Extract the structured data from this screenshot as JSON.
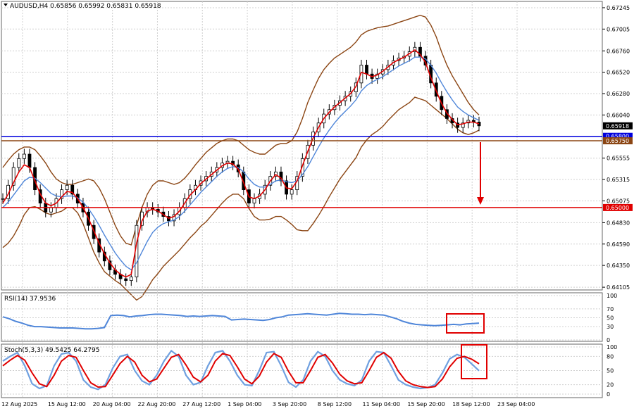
{
  "chart_data": {
    "type": "candlestick",
    "symbol_line": "AUDUSD,H4  0.65856 0.65992 0.65831 0.65918",
    "x_labels": [
      "12 Aug 2025",
      "15 Aug 12:00",
      "20 Aug 04:00",
      "22 Aug 20:00",
      "27 Aug 12:00",
      "1 Sep 04:00",
      "3 Sep 20:00",
      "8 Sep 12:00",
      "11 Sep 04:00",
      "15 Sep 20:00",
      "18 Sep 12:00",
      "23 Sep 04:00"
    ],
    "price_axis": {
      "ticks": [
        "0.67245",
        "0.67005",
        "0.66760",
        "0.66520",
        "0.66280",
        "0.66040",
        "0.65555",
        "0.65315",
        "0.65075",
        "0.64830",
        "0.64590",
        "0.64350",
        "0.64105"
      ],
      "ylim": [
        0.6409,
        0.673
      ]
    },
    "price_series": {
      "close": [
        0.651,
        0.6525,
        0.6545,
        0.6555,
        0.656,
        0.6545,
        0.652,
        0.6505,
        0.6495,
        0.65,
        0.651,
        0.652,
        0.6525,
        0.6515,
        0.6505,
        0.6495,
        0.648,
        0.6465,
        0.645,
        0.644,
        0.643,
        0.6425,
        0.642,
        0.6418,
        0.6422,
        0.648,
        0.6495,
        0.65,
        0.6498,
        0.6495,
        0.649,
        0.6485,
        0.6492,
        0.65,
        0.651,
        0.652,
        0.6525,
        0.653,
        0.6535,
        0.654,
        0.6545,
        0.655,
        0.6552,
        0.6548,
        0.654,
        0.652,
        0.6505,
        0.651,
        0.6515,
        0.6525,
        0.6535,
        0.654,
        0.653,
        0.6515,
        0.652,
        0.6535,
        0.6555,
        0.657,
        0.6585,
        0.6595,
        0.6605,
        0.661,
        0.6615,
        0.662,
        0.6625,
        0.663,
        0.664,
        0.666,
        0.665,
        0.6645,
        0.665,
        0.6655,
        0.666,
        0.6665,
        0.6668,
        0.667,
        0.6675,
        0.668,
        0.667,
        0.666,
        0.664,
        0.6625,
        0.661,
        0.66,
        0.6595,
        0.659,
        0.6595,
        0.6598,
        0.6596,
        0.65918
      ],
      "ma_fast": [
        0.6505,
        0.6515,
        0.6528,
        0.654,
        0.6548,
        0.6545,
        0.653,
        0.6515,
        0.6505,
        0.6502,
        0.6505,
        0.6512,
        0.6518,
        0.6517,
        0.651,
        0.65,
        0.6488,
        0.6474,
        0.646,
        0.6448,
        0.6438,
        0.643,
        0.6425,
        0.6422,
        0.6425,
        0.646,
        0.6485,
        0.6496,
        0.6498,
        0.6496,
        0.6492,
        0.6488,
        0.649,
        0.6496,
        0.6505,
        0.6514,
        0.652,
        0.6527,
        0.6532,
        0.6537,
        0.6542,
        0.6547,
        0.655,
        0.6549,
        0.6543,
        0.6528,
        0.6512,
        0.651,
        0.6513,
        0.652,
        0.653,
        0.6537,
        0.6533,
        0.6522,
        0.6521,
        0.653,
        0.6547,
        0.6563,
        0.6578,
        0.659,
        0.66,
        0.6607,
        0.6613,
        0.6618,
        0.6623,
        0.6628,
        0.6636,
        0.6652,
        0.665,
        0.6647,
        0.6649,
        0.6653,
        0.6658,
        0.6663,
        0.6666,
        0.6669,
        0.6673,
        0.6677,
        0.6672,
        0.6663,
        0.6646,
        0.6631,
        0.6617,
        0.6606,
        0.6599,
        0.6593,
        0.6594,
        0.6596,
        0.6596,
        0.6594
      ],
      "ma_slow": [
        0.65,
        0.6506,
        0.6514,
        0.6522,
        0.653,
        0.6534,
        0.6533,
        0.6528,
        0.6522,
        0.6516,
        0.6513,
        0.6512,
        0.6513,
        0.6513,
        0.6511,
        0.6506,
        0.6499,
        0.649,
        0.648,
        0.6469,
        0.6459,
        0.6449,
        0.6441,
        0.6434,
        0.643,
        0.6438,
        0.645,
        0.6462,
        0.6472,
        0.6478,
        0.6482,
        0.6484,
        0.6486,
        0.649,
        0.6496,
        0.6503,
        0.651,
        0.6517,
        0.6523,
        0.6529,
        0.6535,
        0.654,
        0.6544,
        0.6546,
        0.6545,
        0.654,
        0.6532,
        0.6526,
        0.6523,
        0.6523,
        0.6526,
        0.653,
        0.6531,
        0.6529,
        0.6528,
        0.653,
        0.6537,
        0.6546,
        0.6557,
        0.6568,
        0.6578,
        0.6587,
        0.6595,
        0.6602,
        0.6608,
        0.6614,
        0.6621,
        0.6631,
        0.6637,
        0.6641,
        0.6644,
        0.6647,
        0.6651,
        0.6655,
        0.6659,
        0.6662,
        0.6665,
        0.6669,
        0.6669,
        0.6667,
        0.666,
        0.6651,
        0.664,
        0.663,
        0.6621,
        0.6613,
        0.6608,
        0.6604,
        0.6601,
        0.6598
      ],
      "bb_upper": [
        0.6545,
        0.6553,
        0.656,
        0.6565,
        0.6568,
        0.6568,
        0.6565,
        0.6558,
        0.655,
        0.654,
        0.6532,
        0.6528,
        0.6526,
        0.6526,
        0.6528,
        0.653,
        0.6532,
        0.653,
        0.6522,
        0.651,
        0.6495,
        0.648,
        0.6468,
        0.646,
        0.6458,
        0.648,
        0.65,
        0.6515,
        0.6525,
        0.653,
        0.653,
        0.6528,
        0.6526,
        0.6528,
        0.6533,
        0.654,
        0.6548,
        0.6555,
        0.6562,
        0.6567,
        0.6572,
        0.6575,
        0.6577,
        0.6577,
        0.6575,
        0.657,
        0.6565,
        0.6562,
        0.656,
        0.656,
        0.6565,
        0.657,
        0.6572,
        0.6572,
        0.6575,
        0.6585,
        0.66,
        0.6618,
        0.6632,
        0.6645,
        0.6655,
        0.6662,
        0.6668,
        0.6672,
        0.6676,
        0.668,
        0.6686,
        0.6694,
        0.6698,
        0.67,
        0.6702,
        0.6703,
        0.6704,
        0.6706,
        0.6708,
        0.671,
        0.6712,
        0.6714,
        0.6716,
        0.6714,
        0.6705,
        0.6692,
        0.6675,
        0.666,
        0.6648,
        0.6638,
        0.6628,
        0.6618,
        0.661,
        0.6604
      ],
      "bb_lower": [
        0.6455,
        0.646,
        0.6468,
        0.6479,
        0.6492,
        0.65,
        0.6501,
        0.6498,
        0.6494,
        0.6492,
        0.6494,
        0.6496,
        0.65,
        0.65,
        0.6494,
        0.6482,
        0.6466,
        0.645,
        0.6438,
        0.6428,
        0.6423,
        0.6418,
        0.6414,
        0.6408,
        0.6402,
        0.6396,
        0.64,
        0.6409,
        0.6419,
        0.6426,
        0.6434,
        0.644,
        0.6446,
        0.6452,
        0.6459,
        0.6466,
        0.6472,
        0.6479,
        0.6484,
        0.6491,
        0.6498,
        0.6505,
        0.6511,
        0.6515,
        0.6515,
        0.651,
        0.6499,
        0.649,
        0.6486,
        0.6486,
        0.6487,
        0.649,
        0.649,
        0.6486,
        0.6481,
        0.6475,
        0.6474,
        0.6474,
        0.6482,
        0.6491,
        0.6501,
        0.6512,
        0.6522,
        0.6532,
        0.654,
        0.6548,
        0.6556,
        0.6568,
        0.6576,
        0.6582,
        0.6586,
        0.6591,
        0.6598,
        0.6604,
        0.661,
        0.6614,
        0.6618,
        0.6624,
        0.6622,
        0.662,
        0.6615,
        0.661,
        0.6605,
        0.66,
        0.6594,
        0.6588,
        0.6584,
        0.6582,
        0.6584,
        0.6587
      ]
    },
    "horizontal_levels": [
      {
        "value": 0.658,
        "label": "0.65800",
        "color": "#0000dd"
      },
      {
        "value": 0.6575,
        "label": "0.65750",
        "color": "#8b4513"
      },
      {
        "value": 0.65,
        "label": "0.65000",
        "color": "#e00000"
      }
    ],
    "current_price_label": "0.65918",
    "annotation": {
      "type": "arrow-down",
      "color": "#e00000"
    },
    "rsi": {
      "title": "RSI(14) 37.9536",
      "ticks": [
        "100",
        "70",
        "50",
        "30",
        "0"
      ],
      "ylim": [
        0,
        100
      ],
      "values": [
        52,
        48,
        42,
        38,
        33,
        30,
        30,
        29,
        28,
        27,
        27,
        27,
        26,
        25,
        25,
        26,
        28,
        55,
        56,
        55,
        52,
        54,
        55,
        57,
        58,
        58,
        57,
        56,
        55,
        53,
        54,
        53,
        54,
        55,
        54,
        53,
        45,
        46,
        47,
        46,
        45,
        44,
        46,
        50,
        52,
        56,
        57,
        58,
        59,
        58,
        57,
        56,
        58,
        60,
        59,
        58,
        58,
        57,
        58,
        57,
        56,
        52,
        48,
        42,
        38,
        35,
        34,
        33,
        32,
        33,
        34,
        35,
        34,
        36,
        37,
        37.9536
      ],
      "highlight_box": {
        "color": "#e00000"
      }
    },
    "stoch": {
      "title": "Stoch(5,3,3) 49.5425 64.2795",
      "ticks": [
        "100",
        "80",
        "50",
        "20",
        "0"
      ],
      "ylim": [
        0,
        100
      ],
      "k": [
        70,
        80,
        88,
        60,
        22,
        12,
        18,
        60,
        85,
        88,
        70,
        30,
        15,
        10,
        20,
        55,
        80,
        84,
        50,
        28,
        20,
        40,
        70,
        92,
        80,
        40,
        20,
        25,
        60,
        88,
        92,
        70,
        40,
        20,
        18,
        50,
        88,
        90,
        60,
        25,
        15,
        30,
        70,
        90,
        80,
        50,
        30,
        22,
        18,
        30,
        70,
        90,
        88,
        60,
        30,
        20,
        15,
        12,
        14,
        20,
        45,
        75,
        84,
        78,
        64,
        49.5425
      ],
      "d": [
        60,
        72,
        82,
        72,
        45,
        22,
        16,
        40,
        70,
        82,
        78,
        50,
        24,
        15,
        16,
        40,
        65,
        80,
        68,
        40,
        26,
        32,
        55,
        78,
        84,
        62,
        36,
        26,
        40,
        70,
        86,
        82,
        58,
        32,
        22,
        38,
        68,
        86,
        78,
        48,
        24,
        24,
        50,
        78,
        84,
        66,
        42,
        28,
        22,
        24,
        50,
        78,
        88,
        76,
        48,
        28,
        20,
        16,
        14,
        16,
        32,
        58,
        76,
        80,
        74,
        64.2795
      ],
      "highlight_box": {
        "color": "#e00000"
      }
    },
    "colors": {
      "ma_fast": "#e00000",
      "ma_slow": "#4f86d9",
      "bb": "#8b4513",
      "rsi": "#4f86d9",
      "stoch_k": "#6fa0e0",
      "stoch_d": "#e00000"
    }
  }
}
